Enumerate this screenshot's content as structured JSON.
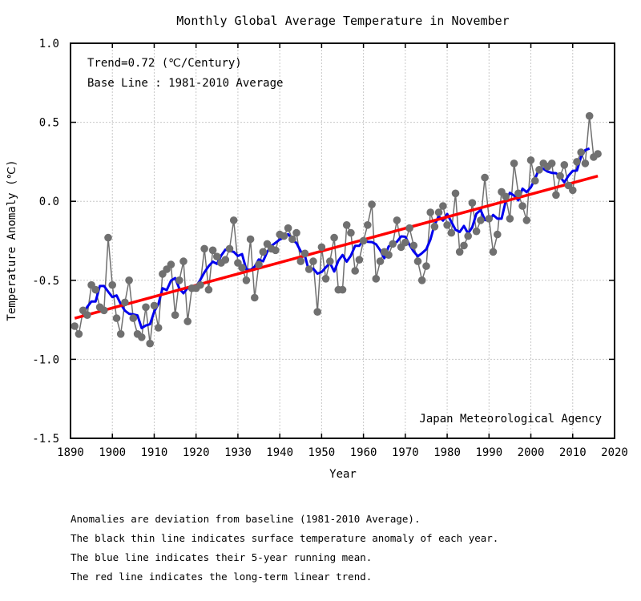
{
  "chart_data": {
    "type": "line",
    "title": "Monthly Global Average Temperature in November",
    "xlabel": "Year",
    "ylabel": "Temperature Anomaly (℃)",
    "xlim": [
      1890,
      2020
    ],
    "ylim": [
      -1.5,
      1.0
    ],
    "xticks": [
      1890,
      1900,
      1910,
      1920,
      1930,
      1940,
      1950,
      1960,
      1970,
      1980,
      1990,
      2000,
      2010,
      2020
    ],
    "yticks": [
      1.0,
      0.5,
      0.0,
      -0.5,
      -1.0,
      -1.5
    ],
    "ytick_labels": [
      "1.0",
      "0.5",
      "0.0",
      "-0.5",
      "-1.0",
      "-1.5"
    ],
    "grid": true,
    "annotations": {
      "trend": "Trend=0.72 (℃/Century)",
      "baseline": "Base Line : 1981-2010 Average",
      "source": "Japan Meteorological Agency"
    },
    "x": [
      1891,
      1892,
      1893,
      1894,
      1895,
      1896,
      1897,
      1898,
      1899,
      1900,
      1901,
      1902,
      1903,
      1904,
      1905,
      1906,
      1907,
      1908,
      1909,
      1910,
      1911,
      1912,
      1913,
      1914,
      1915,
      1916,
      1917,
      1918,
      1919,
      1920,
      1921,
      1922,
      1923,
      1924,
      1925,
      1926,
      1927,
      1928,
      1929,
      1930,
      1931,
      1932,
      1933,
      1934,
      1935,
      1936,
      1937,
      1938,
      1939,
      1940,
      1941,
      1942,
      1943,
      1944,
      1945,
      1946,
      1947,
      1948,
      1949,
      1950,
      1951,
      1952,
      1953,
      1954,
      1955,
      1956,
      1957,
      1958,
      1959,
      1960,
      1961,
      1962,
      1963,
      1964,
      1965,
      1966,
      1967,
      1968,
      1969,
      1970,
      1971,
      1972,
      1973,
      1974,
      1975,
      1976,
      1977,
      1978,
      1979,
      1980,
      1981,
      1982,
      1983,
      1984,
      1985,
      1986,
      1987,
      1988,
      1989,
      1990,
      1991,
      1992,
      1993,
      1994,
      1995,
      1996,
      1997,
      1998,
      1999,
      2000,
      2001,
      2002,
      2003,
      2004,
      2005,
      2006,
      2007,
      2008,
      2009,
      2010,
      2011,
      2012,
      2013,
      2014,
      2015,
      2016
    ],
    "series": [
      {
        "name": "Annual anomaly",
        "color": "#707070",
        "values": [
          -0.79,
          -0.84,
          -0.69,
          -0.72,
          -0.53,
          -0.56,
          -0.67,
          -0.69,
          -0.23,
          -0.53,
          -0.74,
          -0.84,
          -0.64,
          -0.5,
          -0.74,
          -0.84,
          -0.86,
          -0.67,
          -0.9,
          -0.66,
          -0.8,
          -0.46,
          -0.43,
          -0.4,
          -0.72,
          -0.5,
          -0.38,
          -0.76,
          -0.55,
          -0.55,
          -0.53,
          -0.3,
          -0.56,
          -0.31,
          -0.35,
          -0.39,
          -0.37,
          -0.3,
          -0.12,
          -0.39,
          -0.42,
          -0.5,
          -0.24,
          -0.61,
          -0.4,
          -0.32,
          -0.27,
          -0.3,
          -0.31,
          -0.21,
          -0.22,
          -0.17,
          -0.24,
          -0.2,
          -0.38,
          -0.33,
          -0.43,
          -0.38,
          -0.7,
          -0.29,
          -0.49,
          -0.38,
          -0.23,
          -0.56,
          -0.56,
          -0.15,
          -0.2,
          -0.44,
          -0.37,
          -0.25,
          -0.15,
          -0.02,
          -0.49,
          -0.38,
          -0.32,
          -0.34,
          -0.27,
          -0.12,
          -0.29,
          -0.26,
          -0.17,
          -0.28,
          -0.38,
          -0.5,
          -0.41,
          -0.07,
          -0.16,
          -0.07,
          -0.03,
          -0.15,
          -0.2,
          0.05,
          -0.32,
          -0.28,
          -0.22,
          -0.01,
          -0.19,
          -0.12,
          0.15,
          -0.11,
          -0.32,
          -0.21,
          0.06,
          0.03,
          -0.11,
          0.24,
          0.05,
          -0.03,
          -0.12,
          0.26,
          0.13,
          0.2,
          0.24,
          0.22,
          0.24,
          0.04,
          0.16,
          0.23,
          0.1,
          0.07,
          0.25,
          0.31,
          0.24,
          0.54,
          0.28,
          0.3
        ]
      },
      {
        "name": "5-year running mean",
        "color": "#0000ee",
        "window": 5
      },
      {
        "name": "Long-term linear trend",
        "color": "#ff0000",
        "slope_per_century": 0.72,
        "start": [
          1891,
          -0.74
        ],
        "end": [
          2016,
          0.16
        ]
      }
    ]
  },
  "footnotes": [
    "Anomalies are deviation from baseline (1981-2010 Average).",
    "The black thin line indicates surface temperature anomaly of each year.",
    "The blue line indicates their 5-year running mean.",
    "The red line indicates the long-term linear trend."
  ]
}
